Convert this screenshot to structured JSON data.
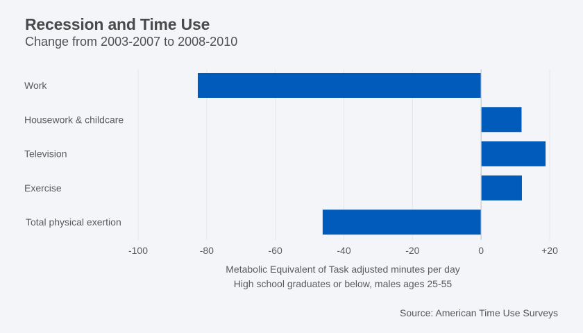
{
  "title": "Recession and Time Use",
  "subtitle": "Change from 2003-2007 to 2008-2010",
  "source": "Source: American Time Use Surveys",
  "colors": {
    "background": "#f3f5f9",
    "bar": "#005bbb",
    "grid": "#e3e6eb",
    "zero_line": "#c8c8c8",
    "text": "#555555"
  },
  "chart_data": {
    "type": "bar",
    "orientation": "horizontal",
    "title": "Recession and Time Use",
    "subtitle": "Change from 2003-2007 to 2008-2010",
    "categories": [
      "Work",
      "Housework & childcare",
      "Television",
      "Exercise",
      "Total physical exertion"
    ],
    "values": [
      -82.6,
      11.8,
      18.8,
      11.9,
      -46.2
    ],
    "xlabel": "Metabolic Equivalent of Task adjusted minutes per day",
    "xlabel_line2": "High school graduates or below, males ages 25-55",
    "ylabel": "",
    "xlim": [
      -100,
      20
    ],
    "xticks": [
      -100,
      -80,
      -60,
      -40,
      -20,
      0,
      20
    ],
    "xtick_labels": [
      "-100",
      "-80",
      "-60",
      "-40",
      "-20",
      "0",
      "+20"
    ],
    "grid": true,
    "legend": "none"
  }
}
